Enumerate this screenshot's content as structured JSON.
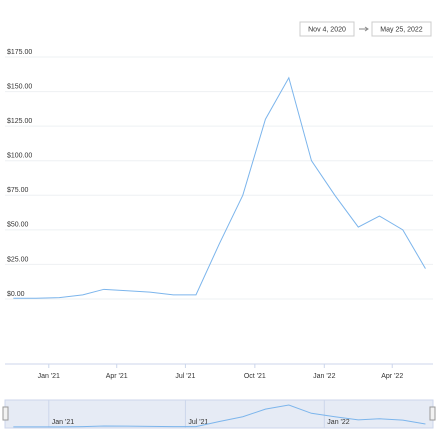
{
  "chart_data": {
    "type": "line",
    "xlim": [
      "Nov 4, 2020",
      "May 25, 2022"
    ],
    "x": [
      "2020-11",
      "2020-12",
      "2021-01",
      "2021-02",
      "2021-03",
      "2021-04",
      "2021-05",
      "2021-06",
      "2021-07",
      "2021-08",
      "2021-09",
      "2021-10",
      "2021-11",
      "2021-12",
      "2022-01",
      "2022-02",
      "2022-03",
      "2022-04",
      "2022-05"
    ],
    "series": [
      {
        "color": "#7cb5ec",
        "values": [
          0.5,
          0.5,
          1,
          3,
          7,
          6,
          5,
          3,
          3,
          40,
          75,
          130,
          160,
          100,
          75,
          52,
          60,
          50,
          22
        ]
      }
    ],
    "ylim": [
      0,
      175
    ],
    "yticks": [
      {
        "value": 0,
        "label": "$0.00"
      },
      {
        "value": 25,
        "label": "$25.00"
      },
      {
        "value": 50,
        "label": "$50.00"
      },
      {
        "value": 75,
        "label": "$75.00"
      },
      {
        "value": 100,
        "label": "$100.00"
      },
      {
        "value": 125,
        "label": "$125.00"
      },
      {
        "value": 150,
        "label": "$150.00"
      },
      {
        "value": 175,
        "label": "$175.00"
      }
    ],
    "xticks": [
      {
        "value": "2021-01",
        "label": "Jan '21"
      },
      {
        "value": "2021-04",
        "label": "Apr '21"
      },
      {
        "value": "2021-07",
        "label": "Jul '21"
      },
      {
        "value": "2021-10",
        "label": "Oct '21"
      },
      {
        "value": "2022-01",
        "label": "Jan '22"
      },
      {
        "value": "2022-04",
        "label": "Apr '22"
      }
    ],
    "grid": true
  }
}
